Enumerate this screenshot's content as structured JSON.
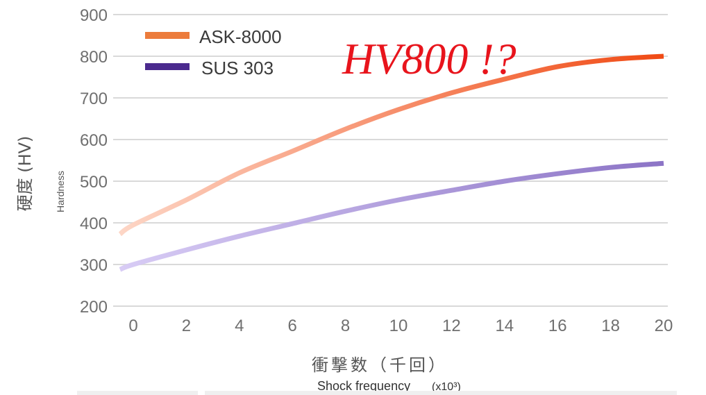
{
  "chart_data": {
    "type": "line",
    "title": "",
    "annotation": "HV800 !?",
    "ylabel": "硬度 (HV)",
    "ylabel_sub": "Hardness",
    "xlabel": "衝撃数（千回）",
    "xlabel_sub": "Shock frequency",
    "xlabel_unit": "(x10³)",
    "xlim": [
      -0.5,
      20
    ],
    "ylim": [
      200,
      900
    ],
    "x_ticks": [
      0,
      2,
      4,
      6,
      8,
      10,
      12,
      14,
      16,
      18,
      20
    ],
    "y_ticks": [
      200,
      300,
      400,
      500,
      600,
      700,
      800,
      900
    ],
    "grid": true,
    "legend_position": "top-left",
    "series": [
      {
        "name": "ASK-8000",
        "color_start": "#fdd6c6",
        "color_end": "#f04a14",
        "legend_color": "#ec7c3c",
        "x": [
          -0.5,
          0,
          2,
          4,
          6,
          8,
          10,
          12,
          14,
          16,
          18,
          20
        ],
        "values": [
          373,
          395,
          455,
          520,
          572,
          625,
          672,
          712,
          745,
          775,
          792,
          800
        ]
      },
      {
        "name": "SUS 303",
        "color_start": "#d8ccf5",
        "color_end": "#8c74c6",
        "legend_color": "#4b2a8e",
        "x": [
          -0.5,
          0,
          2,
          4,
          6,
          8,
          10,
          12,
          14,
          16,
          18,
          20
        ],
        "values": [
          288,
          300,
          335,
          368,
          398,
          428,
          455,
          478,
          500,
          518,
          533,
          543
        ]
      }
    ]
  }
}
